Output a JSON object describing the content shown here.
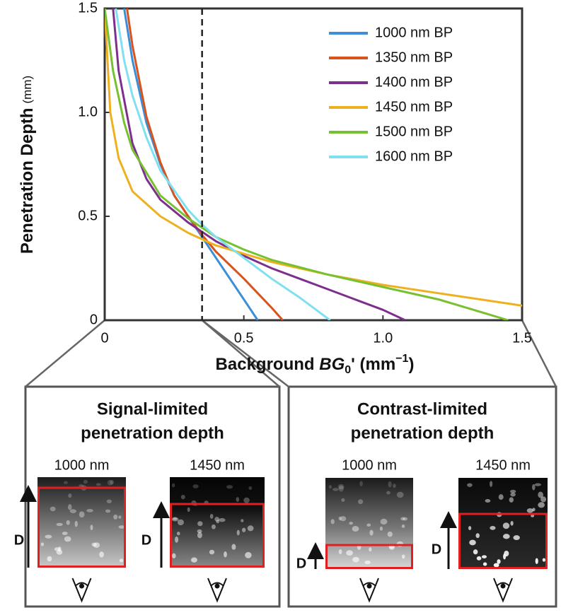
{
  "chart_data": {
    "type": "line",
    "ylabel": "Penetration Depth",
    "ylabel_unit": "(mm)",
    "xlabel_parts": [
      "Background ",
      "BG",
      "0",
      "' (mm",
      "−1",
      ")"
    ],
    "xlim": [
      0,
      1.5
    ],
    "ylim": [
      0,
      1.5
    ],
    "xticks": [
      0,
      0.5,
      {
        "value": 1,
        "label": "1.0"
      },
      1.5
    ],
    "yticks": [
      0,
      0.5,
      {
        "value": 1,
        "label": "1.0"
      },
      1.5
    ],
    "legend": "upper right",
    "reference_x": 0.35,
    "series": [
      {
        "name": "1000 nm BP",
        "color": "#3b8ed8",
        "x": [
          0.07,
          0.1,
          0.15,
          0.2,
          0.25,
          0.3,
          0.35,
          0.4,
          0.45,
          0.5,
          0.55
        ],
        "values": [
          1.5,
          1.25,
          0.95,
          0.75,
          0.6,
          0.5,
          0.4,
          0.3,
          0.2,
          0.1,
          0
        ]
      },
      {
        "name": "1350 nm BP",
        "color": "#d9531e",
        "x": [
          0.08,
          0.1,
          0.15,
          0.2,
          0.25,
          0.3,
          0.35,
          0.4,
          0.5,
          0.6,
          0.64
        ],
        "values": [
          1.5,
          1.32,
          0.98,
          0.76,
          0.6,
          0.5,
          0.41,
          0.33,
          0.2,
          0.06,
          0
        ]
      },
      {
        "name": "1400 nm BP",
        "color": "#7e2f8e",
        "x": [
          0.03,
          0.05,
          0.1,
          0.15,
          0.2,
          0.3,
          0.4,
          0.5,
          0.6,
          0.7,
          0.8,
          0.9,
          1.0,
          1.08
        ],
        "values": [
          1.5,
          1.2,
          0.85,
          0.68,
          0.58,
          0.47,
          0.38,
          0.31,
          0.25,
          0.2,
          0.15,
          0.1,
          0.05,
          0
        ]
      },
      {
        "name": "1450 nm BP",
        "color": "#edb120",
        "x": [
          0,
          0.02,
          0.05,
          0.1,
          0.2,
          0.3,
          0.4,
          0.6,
          0.8,
          1.0,
          1.2,
          1.4,
          1.5
        ],
        "values": [
          1.5,
          1.0,
          0.78,
          0.62,
          0.5,
          0.42,
          0.36,
          0.28,
          0.22,
          0.17,
          0.13,
          0.09,
          0.07
        ]
      },
      {
        "name": "1500 nm BP",
        "color": "#77c030",
        "x": [
          0,
          0.03,
          0.07,
          0.1,
          0.2,
          0.3,
          0.4,
          0.5,
          0.6,
          0.8,
          1.0,
          1.2,
          1.35,
          1.45
        ],
        "values": [
          1.5,
          1.2,
          0.95,
          0.82,
          0.6,
          0.49,
          0.4,
          0.34,
          0.29,
          0.22,
          0.16,
          0.1,
          0.04,
          0
        ]
      },
      {
        "name": "1600 nm BP",
        "color": "#80e0f0",
        "x": [
          0.04,
          0.07,
          0.1,
          0.15,
          0.2,
          0.3,
          0.35,
          0.4,
          0.5,
          0.6,
          0.7,
          0.81
        ],
        "values": [
          1.5,
          1.25,
          1.08,
          0.88,
          0.72,
          0.53,
          0.46,
          0.4,
          0.3,
          0.2,
          0.11,
          0
        ]
      }
    ]
  },
  "panels": [
    {
      "title": [
        "Signal-limited",
        "penetration depth"
      ],
      "images": [
        {
          "label": "1000 nm",
          "depth_label": "D"
        },
        {
          "label": "1450 nm",
          "depth_label": "D"
        }
      ]
    },
    {
      "title": [
        "Contrast-limited",
        "penetration depth"
      ],
      "images": [
        {
          "label": "1000 nm",
          "depth_label": "D"
        },
        {
          "label": "1450 nm",
          "depth_label": "D"
        }
      ]
    }
  ]
}
